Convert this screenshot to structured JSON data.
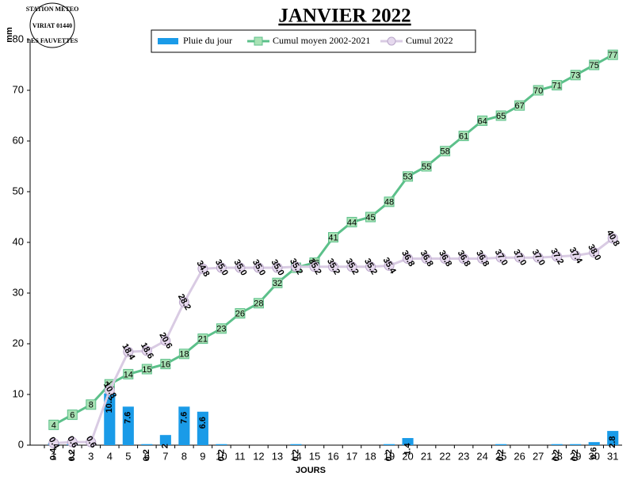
{
  "chart_data": {
    "type": "combo",
    "title": "JANVIER 2022",
    "y_label": "mm",
    "x_label": "JOURS",
    "logo": [
      "STATION METEO",
      "VIRIAT 01440",
      "LES FAUVETTES"
    ],
    "categories": [
      "1",
      "2",
      "3",
      "4",
      "5",
      "6",
      "7",
      "8",
      "9",
      "10",
      "11",
      "12",
      "13",
      "14",
      "15",
      "16",
      "17",
      "18",
      "19",
      "20",
      "21",
      "22",
      "23",
      "24",
      "25",
      "26",
      "27",
      "28",
      "29",
      "30",
      "31"
    ],
    "ylim": [
      0,
      80
    ],
    "yticks": [
      0,
      10,
      20,
      30,
      40,
      50,
      60,
      70,
      80
    ],
    "series": [
      {
        "name": "Pluie du jour",
        "type": "bar",
        "color": "#1a9be8",
        "values": [
          0.4,
          0.2,
          0,
          10.2,
          7.6,
          0.2,
          2,
          7.6,
          6.6,
          0.2,
          0,
          0,
          0,
          0.2,
          0,
          0,
          0,
          0,
          0.2,
          1.4,
          0,
          0,
          0,
          0,
          0.2,
          0,
          0,
          0.2,
          0.2,
          0.6,
          2.8
        ]
      },
      {
        "name": "Cumul moyen 2002-2021",
        "type": "line",
        "color": "#5cc08a",
        "marker": "square",
        "marker_color": "#a9e2b5",
        "values": [
          4,
          6,
          8,
          12,
          14,
          15,
          16,
          18,
          21,
          23,
          26,
          28,
          32,
          35,
          36,
          41,
          44,
          45,
          48,
          53,
          55,
          58,
          61,
          64,
          65,
          67,
          70,
          71,
          73,
          75,
          77
        ]
      },
      {
        "name": "Cumul 2022",
        "type": "line",
        "color": "#d9cbe3",
        "marker": "circle",
        "marker_color": "#e6d9ee",
        "values": [
          0.4,
          0.6,
          0.6,
          10.8,
          18.4,
          18.6,
          20.6,
          28.2,
          34.8,
          35,
          35,
          35,
          35,
          35.2,
          35.2,
          35.2,
          35.2,
          35.2,
          35.4,
          36.8,
          36.8,
          36.8,
          36.8,
          36.8,
          37,
          37,
          37,
          37.2,
          37.4,
          38,
          40.8
        ],
        "value_labels": [
          "0.4",
          "0.6",
          "0.6",
          "10.8",
          "18.4",
          "18.6",
          "20.6",
          "28.2",
          "34.8",
          "35.0",
          "35.0",
          "35.0",
          "35.0",
          "35.2",
          "35.2",
          "35.2",
          "35.2",
          "35.2",
          "35.4",
          "36.8",
          "36.8",
          "36.8",
          "36.8",
          "36.8",
          "37.0",
          "37.0",
          "37.0",
          "37.2",
          "37.4",
          "38.0",
          "40.8"
        ]
      }
    ]
  }
}
